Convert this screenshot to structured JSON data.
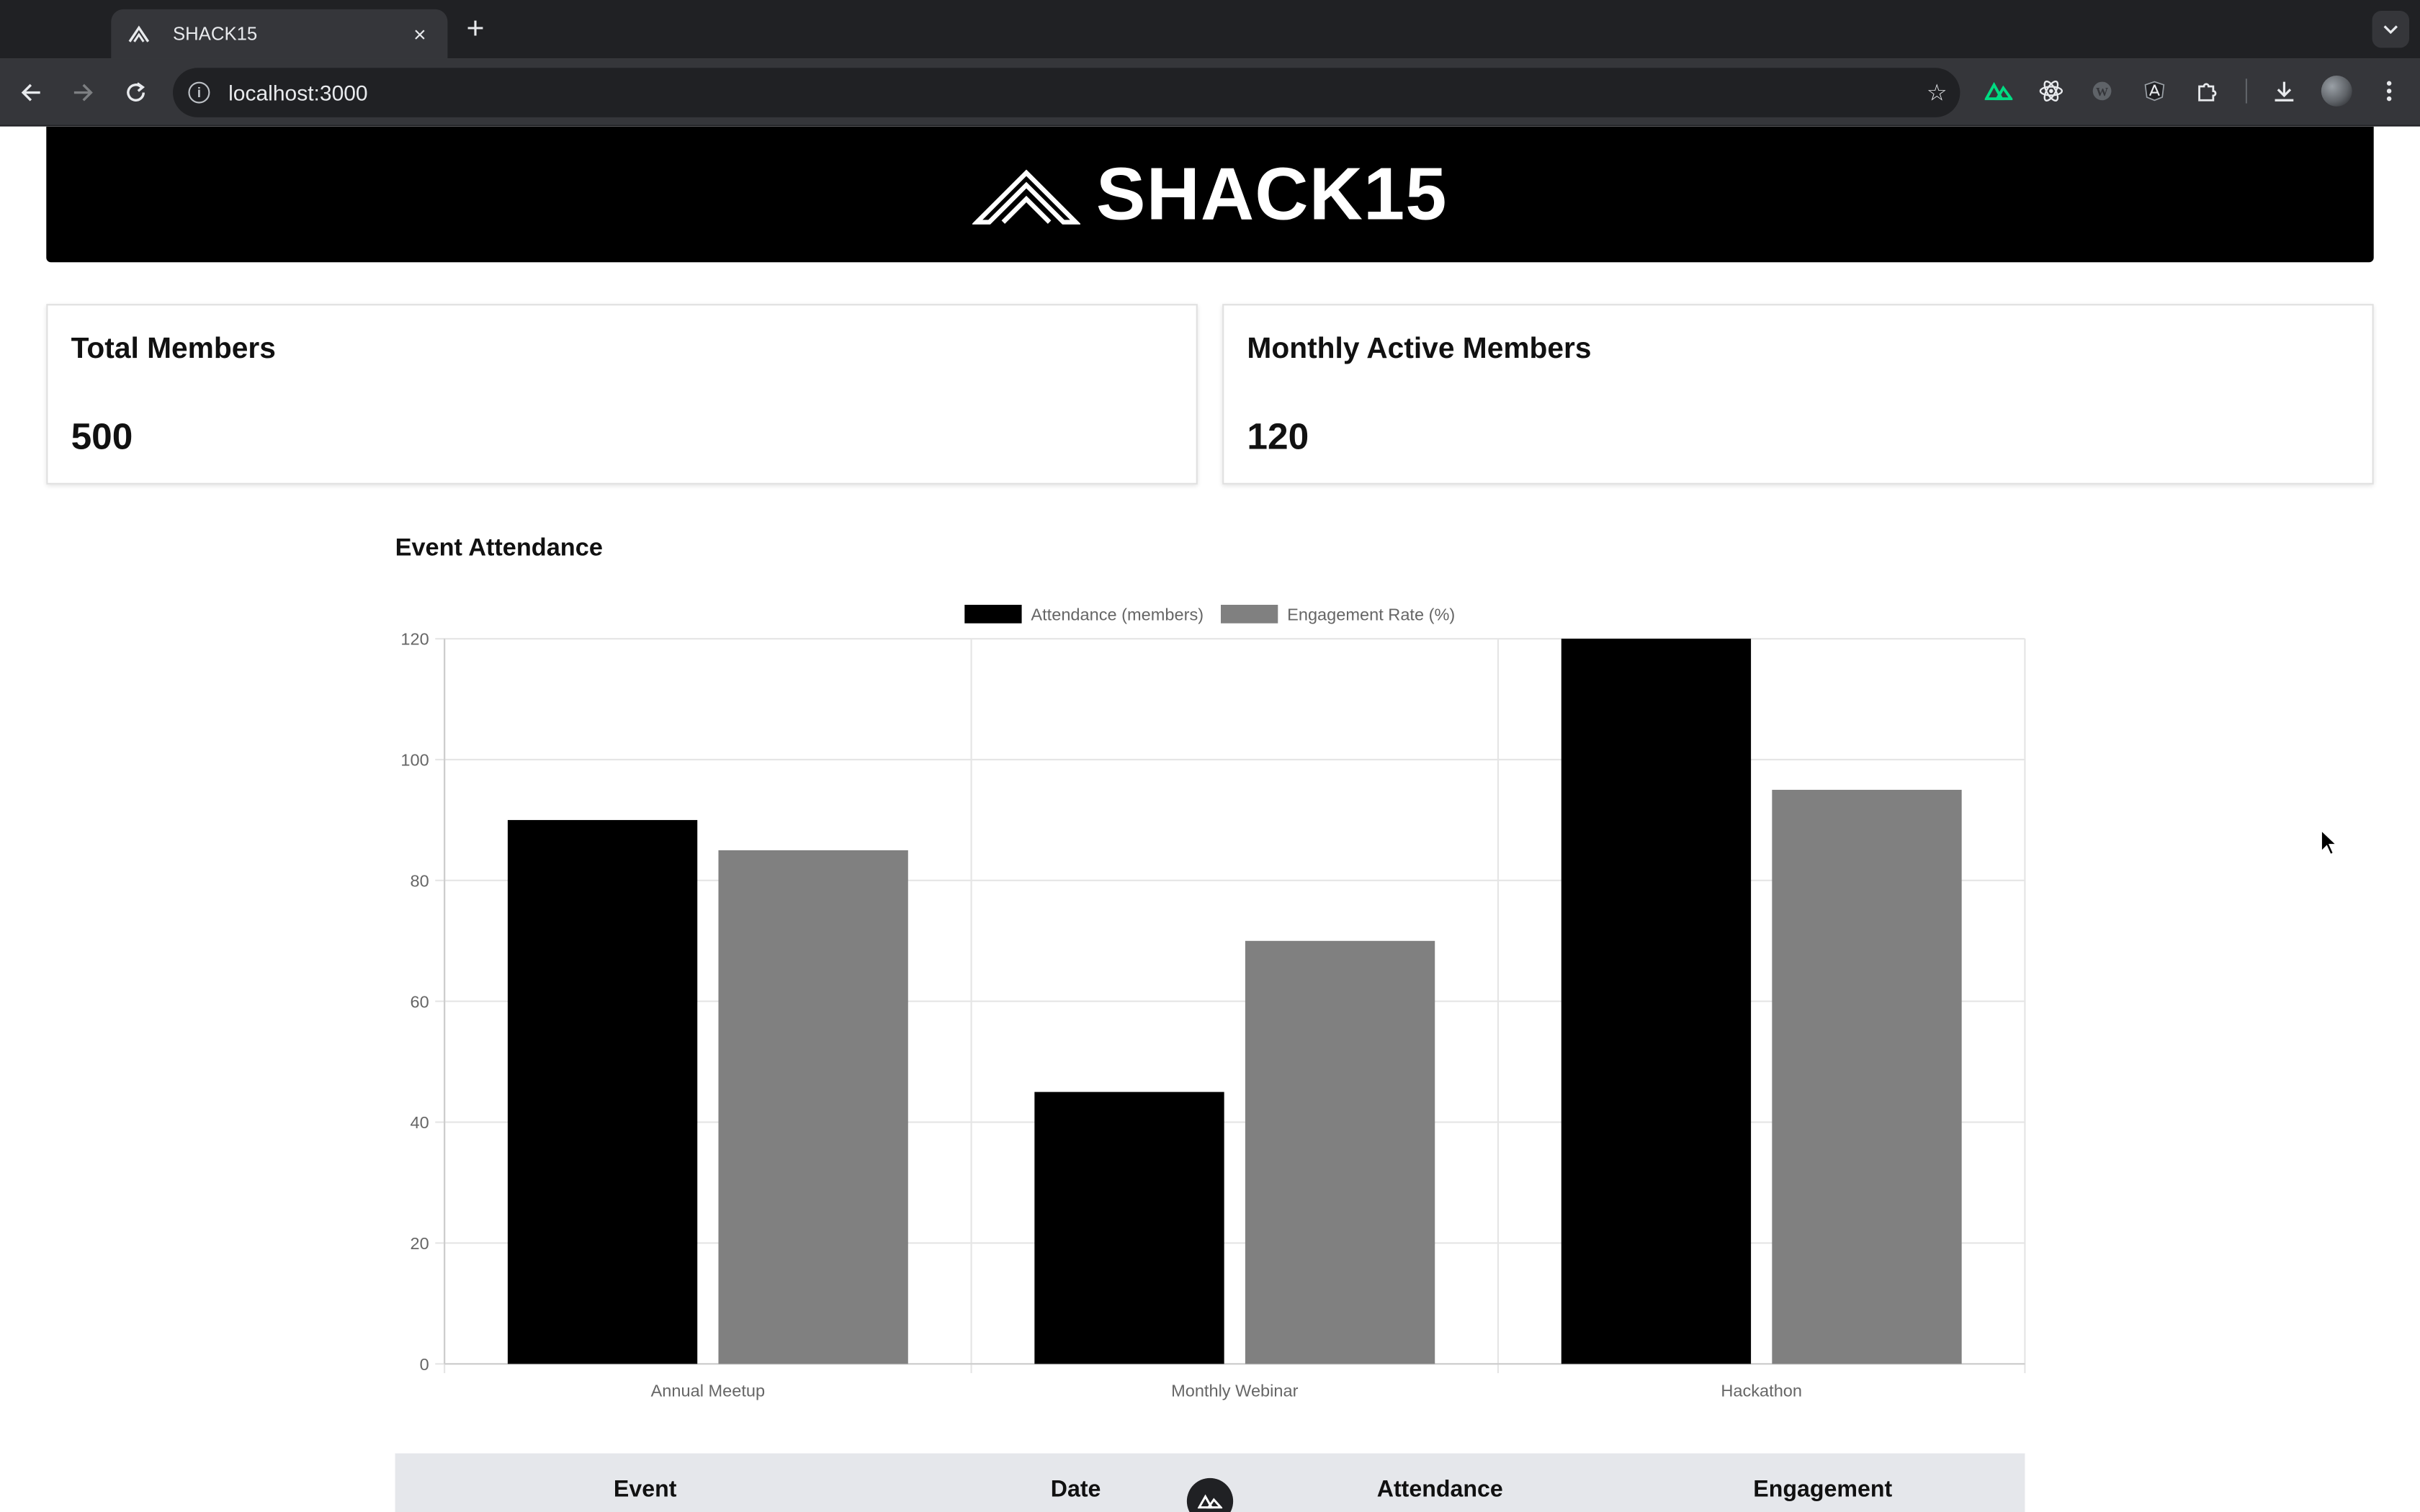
{
  "browser": {
    "tab_title": "SHACK15",
    "tab_close": "×",
    "new_tab": "+",
    "url": "localhost:3000"
  },
  "header": {
    "logo_text": "SHACK15"
  },
  "stats": [
    {
      "label": "Total Members",
      "value": "500"
    },
    {
      "label": "Monthly Active Members",
      "value": "120"
    }
  ],
  "section": {
    "title": "Event Attendance"
  },
  "chart_data": {
    "type": "bar",
    "categories": [
      "Annual Meetup",
      "Monthly Webinar",
      "Hackathon"
    ],
    "series": [
      {
        "name": "Attendance (members)",
        "values": [
          90,
          45,
          120
        ],
        "color": "#000000"
      },
      {
        "name": "Engagement Rate (%)",
        "values": [
          85,
          70,
          95
        ],
        "color": "#808080"
      }
    ],
    "ylim": [
      0,
      120
    ],
    "yticks": [
      0,
      20,
      40,
      60,
      80,
      100,
      120
    ],
    "grid": true,
    "legend": "top-center"
  },
  "table": {
    "headers": [
      "Event",
      "Date",
      "Attendance",
      "Engagement"
    ]
  },
  "colors": {
    "header_bg": "#000000",
    "attendance": "#000000",
    "engagement": "#808080",
    "table_head_bg": "#e5e7eb"
  }
}
